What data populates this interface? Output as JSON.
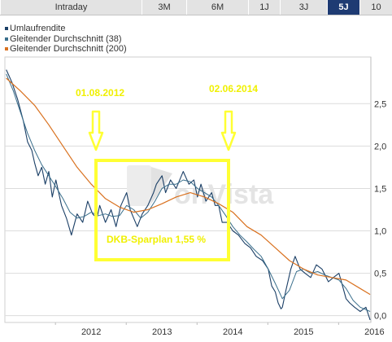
{
  "tabs": [
    {
      "label": "Intraday",
      "active": false
    },
    {
      "label": "3M",
      "active": false
    },
    {
      "label": "6M",
      "active": false
    },
    {
      "label": "1J",
      "active": false
    },
    {
      "label": "3J",
      "active": false
    },
    {
      "label": "5J",
      "active": true
    },
    {
      "label": "10",
      "active": false
    }
  ],
  "colors": {
    "series_main": "#1b3f66",
    "series_ma38": "#3a6f8c",
    "series_ma200": "#d9711f",
    "annotation": "#ffff33",
    "annotation_text": "#f0f000",
    "tab_active_bg": "#1e3b73",
    "grid": "#dcdcdc",
    "watermark": "#e4e4e4"
  },
  "watermark": "onVista",
  "annotations": {
    "date_left": "01.08.2012",
    "date_right": "02.06.2014",
    "box_label": "DKB-Sparplan 1,55 %"
  },
  "chart_data": {
    "type": "line",
    "title": "",
    "xlabel": "",
    "ylabel": "",
    "x_ticks": [
      "2012",
      "2013",
      "2014",
      "2015",
      "2016"
    ],
    "y_ticks": [
      "0,0",
      "0,5",
      "1,0",
      "1,5",
      "2,0",
      "2,5"
    ],
    "ylim": [
      -0.08,
      3.05
    ],
    "xlim": [
      2011.28,
      2016.45
    ],
    "grid": "horizontal",
    "legend_position": "top-left",
    "series": [
      {
        "name": "Umlaufrendite",
        "x": [
          2011.3,
          2011.38,
          2011.46,
          2011.54,
          2011.6,
          2011.66,
          2011.7,
          2011.75,
          2011.8,
          2011.85,
          2011.9,
          2011.95,
          2012.0,
          2012.08,
          2012.15,
          2012.22,
          2012.3,
          2012.38,
          2012.45,
          2012.52,
          2012.58,
          2012.62,
          2012.7,
          2012.78,
          2012.85,
          2012.92,
          2013.0,
          2013.05,
          2013.1,
          2013.15,
          2013.22,
          2013.3,
          2013.38,
          2013.42,
          2013.5,
          2013.55,
          2013.62,
          2013.7,
          2013.8,
          2013.88,
          2013.95,
          2014.0,
          2014.05,
          2014.12,
          2014.2,
          2014.25,
          2014.3,
          2014.35,
          2014.42,
          2014.5,
          2014.58,
          2014.67,
          2014.75,
          2014.83,
          2014.92,
          2015.0,
          2015.05,
          2015.1,
          2015.14,
          2015.18,
          2015.2,
          2015.25,
          2015.32,
          2015.38,
          2015.45,
          2015.52,
          2015.6,
          2015.68,
          2015.76,
          2015.85,
          2015.92,
          2016.0,
          2016.05,
          2016.1,
          2016.15,
          2016.22,
          2016.3,
          2016.38,
          2016.44
        ],
        "values": [
          2.9,
          2.75,
          2.55,
          2.3,
          2.05,
          1.95,
          1.8,
          1.65,
          1.75,
          1.55,
          1.7,
          1.4,
          1.6,
          1.3,
          1.15,
          0.95,
          1.2,
          1.1,
          1.35,
          1.2,
          1.15,
          1.3,
          1.1,
          1.25,
          1.05,
          1.3,
          1.45,
          1.25,
          1.15,
          1.05,
          1.2,
          1.3,
          1.45,
          1.55,
          1.65,
          1.45,
          1.6,
          1.5,
          1.7,
          1.55,
          1.6,
          1.4,
          1.55,
          1.35,
          1.45,
          1.3,
          1.3,
          1.1,
          1.1,
          1.0,
          0.95,
          0.85,
          0.8,
          0.7,
          0.65,
          0.55,
          0.35,
          0.28,
          0.15,
          0.08,
          0.1,
          0.3,
          0.55,
          0.7,
          0.55,
          0.5,
          0.45,
          0.6,
          0.55,
          0.4,
          0.45,
          0.5,
          0.35,
          0.2,
          0.15,
          0.1,
          0.05,
          0.1,
          -0.05
        ]
      },
      {
        "name": "Gleitender Durchschnitt (38)",
        "x": [
          2011.3,
          2011.4,
          2011.5,
          2011.6,
          2011.7,
          2011.8,
          2011.9,
          2012.0,
          2012.1,
          2012.2,
          2012.3,
          2012.4,
          2012.5,
          2012.6,
          2012.7,
          2012.8,
          2012.9,
          2013.0,
          2013.1,
          2013.2,
          2013.3,
          2013.4,
          2013.5,
          2013.6,
          2013.7,
          2013.8,
          2013.9,
          2014.0,
          2014.1,
          2014.2,
          2014.3,
          2014.4,
          2014.5,
          2014.6,
          2014.7,
          2014.8,
          2014.9,
          2015.0,
          2015.1,
          2015.2,
          2015.3,
          2015.4,
          2015.5,
          2015.6,
          2015.7,
          2015.8,
          2015.9,
          2016.0,
          2016.1,
          2016.2,
          2016.3,
          2016.44
        ],
        "values": [
          2.85,
          2.65,
          2.4,
          2.15,
          1.95,
          1.78,
          1.65,
          1.52,
          1.38,
          1.22,
          1.15,
          1.17,
          1.22,
          1.18,
          1.2,
          1.17,
          1.18,
          1.3,
          1.25,
          1.15,
          1.22,
          1.35,
          1.5,
          1.55,
          1.55,
          1.6,
          1.58,
          1.5,
          1.45,
          1.4,
          1.3,
          1.18,
          1.05,
          0.95,
          0.87,
          0.78,
          0.7,
          0.55,
          0.38,
          0.2,
          0.3,
          0.52,
          0.55,
          0.5,
          0.52,
          0.48,
          0.45,
          0.42,
          0.32,
          0.18,
          0.1,
          0.05
        ]
      },
      {
        "name": "Gleitender Durchschnitt (200)",
        "x": [
          2011.3,
          2011.5,
          2011.7,
          2011.9,
          2012.1,
          2012.3,
          2012.5,
          2012.7,
          2012.9,
          2013.1,
          2013.3,
          2013.5,
          2013.7,
          2013.9,
          2014.1,
          2014.3,
          2014.5,
          2014.7,
          2014.9,
          2015.1,
          2015.3,
          2015.5,
          2015.7,
          2015.9,
          2016.1,
          2016.3,
          2016.44
        ],
        "values": [
          2.8,
          2.65,
          2.48,
          2.25,
          2.0,
          1.75,
          1.55,
          1.38,
          1.28,
          1.22,
          1.25,
          1.32,
          1.4,
          1.45,
          1.4,
          1.32,
          1.22,
          1.05,
          0.95,
          0.8,
          0.65,
          0.55,
          0.48,
          0.45,
          0.42,
          0.32,
          0.25
        ]
      }
    ]
  }
}
